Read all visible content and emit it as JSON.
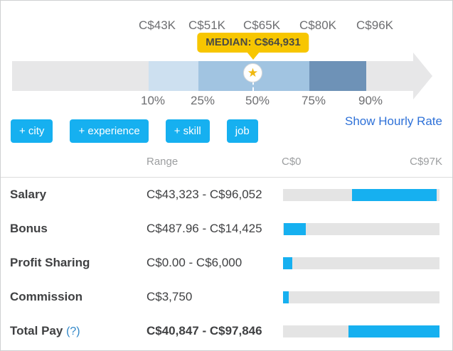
{
  "colors": {
    "accent_cyan": "#16b0f0",
    "track_gray": "#e7e7e8",
    "segment_light_blue": "#cde0f0",
    "segment_mid_blue": "#a1c4e1",
    "segment_dark_blue": "#6e92b7",
    "median_yellow": "#f7c600",
    "star_gold": "#efb810",
    "link_blue": "#2e71d8"
  },
  "distribution": {
    "median_flag": "MEDIAN: C$64,931",
    "ticks": [
      {
        "amount_label": "C$43K",
        "percentile_label": "10%"
      },
      {
        "amount_label": "C$51K",
        "percentile_label": "25%"
      },
      {
        "amount_label": "C$65K",
        "percentile_label": "50%"
      },
      {
        "amount_label": "C$80K",
        "percentile_label": "75%"
      },
      {
        "amount_label": "C$96K",
        "percentile_label": "90%"
      }
    ]
  },
  "toolbar": {
    "buttons": [
      "+ city",
      "+ experience",
      "+ skill",
      "job"
    ],
    "hourly_link": "Show Hourly Rate"
  },
  "table": {
    "header": {
      "range": "Range",
      "axis_min": "C$0",
      "axis_max": "C$97K"
    },
    "scale_max": 97846,
    "rows": [
      {
        "label": "Salary",
        "display": "C$43,323 - C$96,052",
        "min": 43323,
        "max": 96052,
        "bold": false
      },
      {
        "label": "Bonus",
        "display": "C$487.96 - C$14,425",
        "min": 487.96,
        "max": 14425,
        "bold": false
      },
      {
        "label": "Profit Sharing",
        "display": "C$0.00 - C$6,000",
        "min": 0,
        "max": 6000,
        "bold": false
      },
      {
        "label": "Commission",
        "display": "C$3,750",
        "min": 0,
        "max": 3750,
        "bold": false
      },
      {
        "label": "Total Pay",
        "help": "(?)",
        "display": "C$40,847 - C$97,846",
        "min": 40847,
        "max": 97846,
        "bold": true
      }
    ]
  },
  "chart_data": [
    {
      "type": "bar",
      "title": "Salary distribution percentiles (CAD)",
      "categories": [
        "10%",
        "25%",
        "50%",
        "75%",
        "90%"
      ],
      "values": [
        43000,
        51000,
        64931,
        80000,
        96000
      ],
      "value_labels": [
        "C$43K",
        "C$51K",
        "C$65K",
        "C$80K",
        "C$96K"
      ],
      "median": 64931,
      "annotations": [
        "MEDIAN: C$64,931"
      ],
      "legend": "none"
    },
    {
      "type": "bar",
      "orientation": "horizontal",
      "title": "Pay components range (CAD)",
      "categories": [
        "Salary",
        "Bonus",
        "Profit Sharing",
        "Commission",
        "Total Pay"
      ],
      "series": [
        {
          "name": "range_min",
          "values": [
            43323,
            487.96,
            0,
            0,
            40847
          ]
        },
        {
          "name": "range_max",
          "values": [
            96052,
            14425,
            6000,
            3750,
            97846
          ]
        }
      ],
      "xlim": [
        0,
        97846
      ],
      "x_axis_labels": [
        "C$0",
        "C$97K"
      ]
    }
  ]
}
